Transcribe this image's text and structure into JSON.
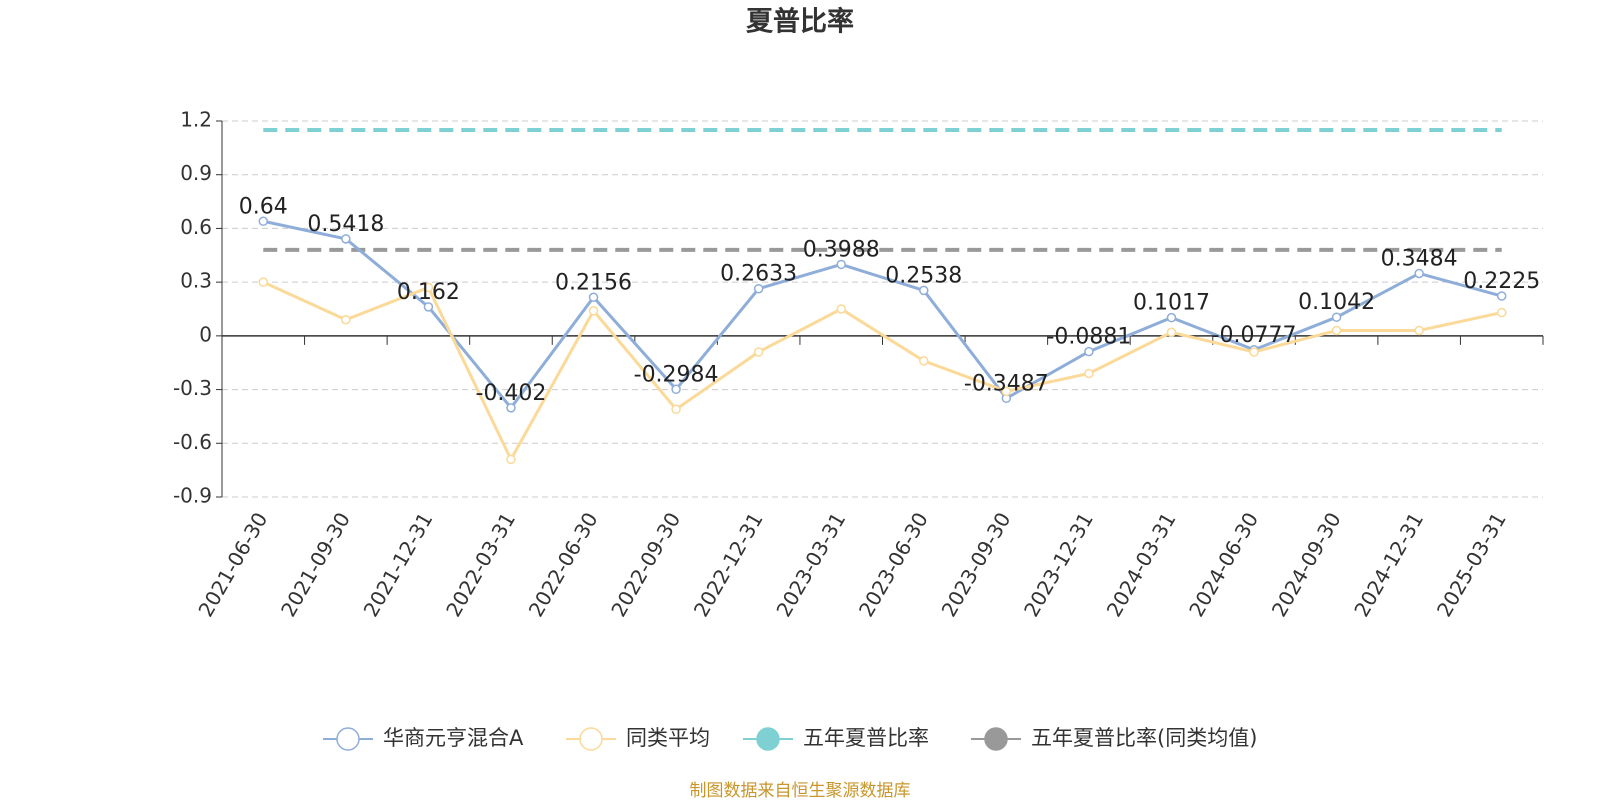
{
  "chart_data": {
    "type": "line",
    "title": "夏普比率",
    "categories": [
      "2021-06-30",
      "2021-09-30",
      "2021-12-31",
      "2022-03-31",
      "2022-06-30",
      "2022-09-30",
      "2022-12-31",
      "2023-03-31",
      "2023-06-30",
      "2023-09-30",
      "2023-12-31",
      "2024-03-31",
      "2024-06-30",
      "2024-09-30",
      "2024-12-31",
      "2025-03-31"
    ],
    "series": [
      {
        "name": "华商元亨混合A",
        "color": "#8eadd8",
        "values": [
          0.64,
          0.5418,
          0.162,
          -0.402,
          0.2156,
          -0.2984,
          0.2633,
          0.3988,
          0.2538,
          -0.3487,
          -0.0881,
          0.1017,
          -0.0777,
          0.1042,
          0.3484,
          0.2225
        ],
        "data_labels": true
      },
      {
        "name": "同类平均",
        "color": "#fbd998",
        "values": [
          0.3,
          0.09,
          0.27,
          -0.69,
          0.14,
          -0.41,
          -0.09,
          0.15,
          -0.14,
          -0.31,
          -0.21,
          0.02,
          -0.09,
          0.03,
          0.03,
          0.13
        ]
      }
    ],
    "reference_lines": [
      {
        "name": "五年夏普比率",
        "color": "#7fd0d2",
        "value": 1.15
      },
      {
        "name": "五年夏普比率(同类均值)",
        "color": "#999999",
        "value": 0.48
      }
    ],
    "ylim": [
      -0.9,
      1.2
    ],
    "yticks": [
      1.2,
      0.9,
      0.6,
      0.3,
      0,
      -0.3,
      -0.6,
      -0.9
    ],
    "grid": true,
    "legend": "bottom",
    "source": "制图数据来自恒生聚源数据库"
  }
}
